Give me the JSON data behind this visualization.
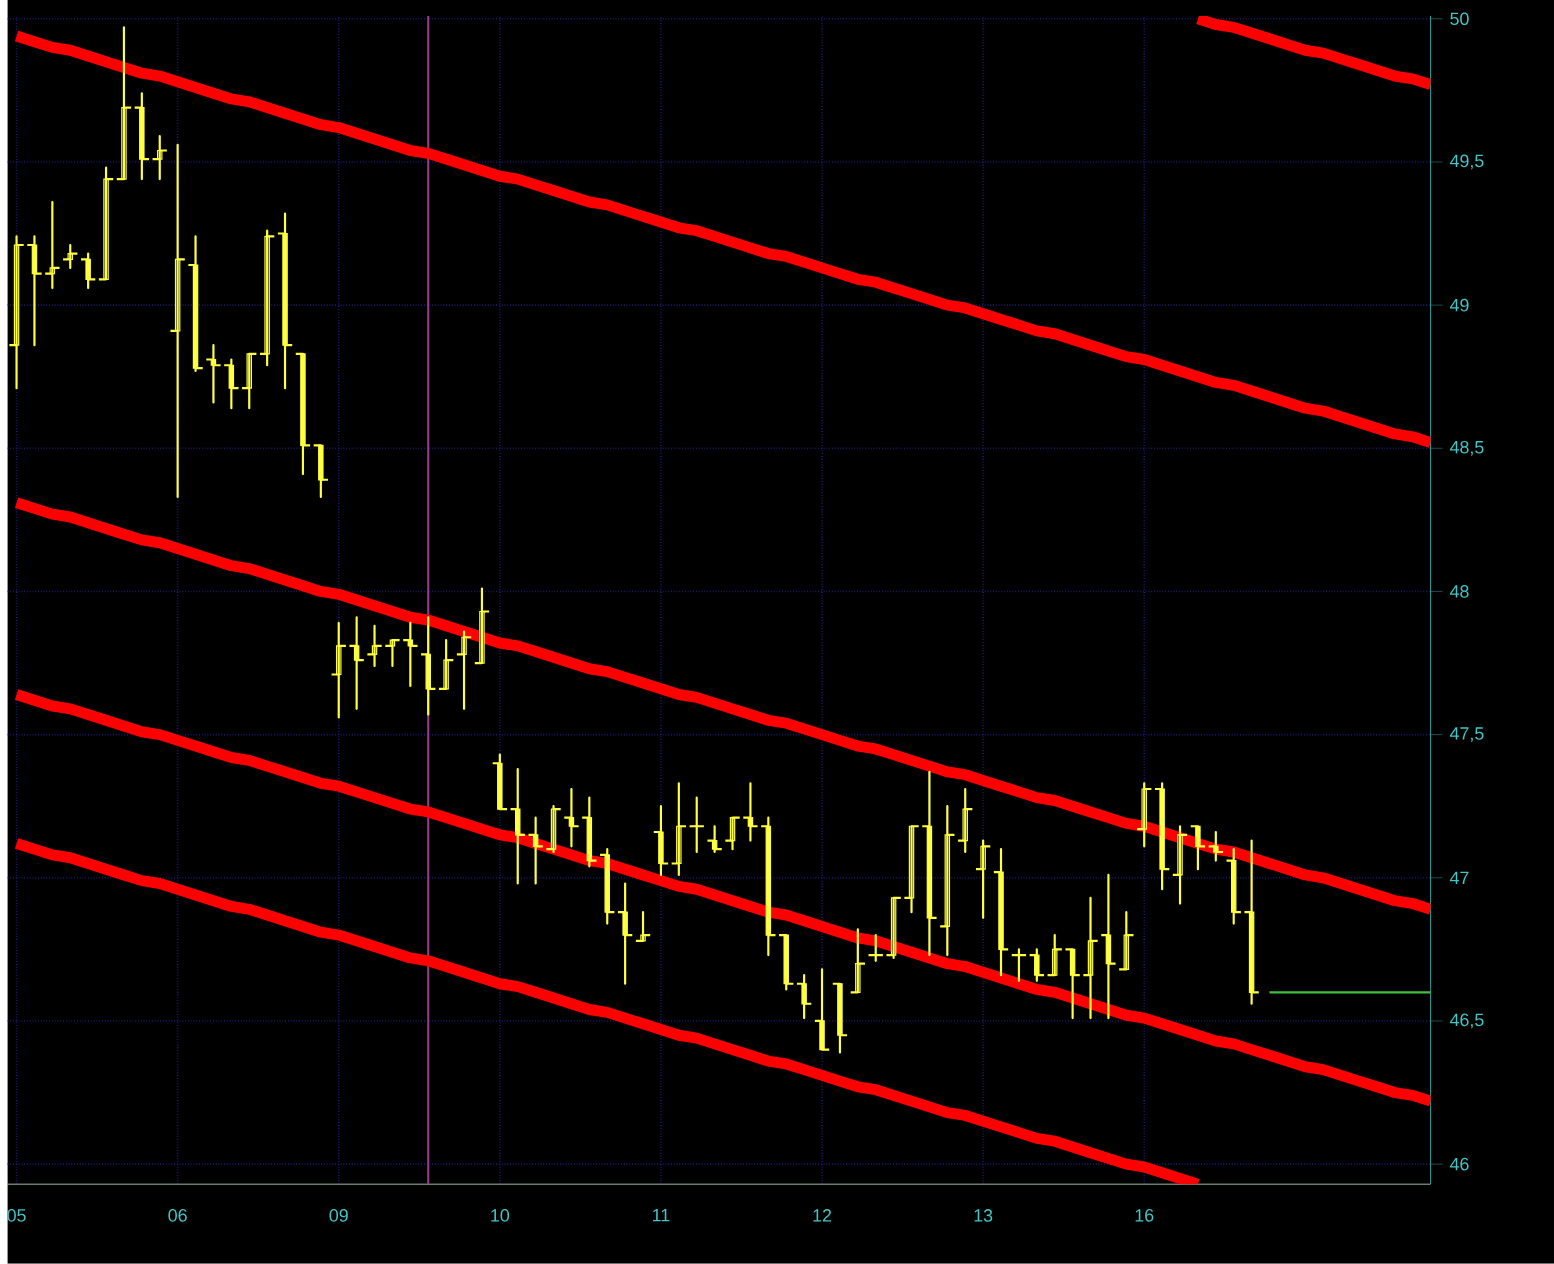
{
  "chart_data": {
    "type": "candlestick",
    "color": "#ffff40",
    "categories": [
      "05",
      null,
      null,
      null,
      null,
      null,
      null,
      null,
      null,
      "06",
      null,
      null,
      null,
      null,
      null,
      null,
      null,
      null,
      "09",
      null,
      null,
      null,
      null,
      null,
      null,
      null,
      null,
      "10",
      null,
      null,
      null,
      null,
      null,
      null,
      null,
      null,
      "11",
      null,
      null,
      null,
      null,
      null,
      null,
      null,
      null,
      "12",
      null,
      null,
      null,
      null,
      null,
      null,
      null,
      null,
      "13",
      null,
      null,
      null,
      null,
      null,
      null,
      null,
      null,
      "16",
      null,
      null,
      null,
      null,
      null,
      null,
      null,
      null,
      null,
      null,
      null,
      null,
      null,
      null,
      null,
      null
    ],
    "ohlc": [
      [
        48.86,
        49.24,
        48.71,
        49.21
      ],
      [
        49.21,
        49.24,
        48.86,
        49.11
      ],
      [
        49.11,
        49.36,
        49.06,
        49.13
      ],
      [
        49.16,
        49.21,
        49.13,
        49.18
      ],
      [
        49.16,
        49.18,
        49.06,
        49.09
      ],
      [
        49.09,
        49.48,
        49.09,
        49.44
      ],
      [
        49.44,
        49.97,
        49.44,
        49.69
      ],
      [
        49.69,
        49.74,
        49.44,
        49.51
      ],
      [
        49.51,
        49.59,
        49.44,
        49.54
      ],
      [
        48.91,
        49.56,
        48.33,
        49.16
      ],
      [
        49.14,
        49.24,
        48.77,
        48.78
      ],
      [
        48.81,
        48.86,
        48.66,
        48.79
      ],
      [
        48.79,
        48.81,
        48.64,
        48.71
      ],
      [
        48.71,
        48.83,
        48.64,
        48.83
      ],
      [
        48.83,
        49.26,
        48.79,
        49.24
      ],
      [
        49.25,
        49.32,
        48.71,
        48.86
      ],
      [
        48.83,
        48.83,
        48.41,
        48.51
      ],
      [
        48.51,
        48.51,
        48.33,
        48.39
      ],
      [
        47.71,
        47.89,
        47.56,
        47.81
      ],
      [
        47.81,
        47.91,
        47.59,
        47.76
      ],
      [
        47.78,
        47.88,
        47.74,
        47.81
      ],
      [
        47.81,
        47.83,
        47.74,
        47.83
      ],
      [
        47.83,
        47.89,
        47.67,
        47.81
      ],
      [
        47.78,
        47.91,
        47.57,
        47.66
      ],
      [
        47.66,
        47.83,
        47.66,
        47.76
      ],
      [
        47.78,
        47.86,
        47.59,
        47.84
      ],
      [
        47.75,
        48.01,
        47.75,
        47.93
      ],
      [
        47.4,
        47.43,
        47.24,
        47.24
      ],
      [
        47.24,
        47.38,
        46.98,
        47.15
      ],
      [
        47.15,
        47.21,
        46.98,
        47.11
      ],
      [
        47.1,
        47.25,
        47.09,
        47.24
      ],
      [
        47.21,
        47.31,
        47.11,
        47.18
      ],
      [
        47.21,
        47.28,
        47.04,
        47.06
      ],
      [
        47.08,
        47.1,
        46.84,
        46.88
      ],
      [
        46.88,
        46.98,
        46.63,
        46.8
      ],
      [
        46.78,
        46.88,
        46.78,
        46.8
      ],
      [
        47.16,
        47.25,
        47.01,
        47.05
      ],
      [
        47.05,
        47.33,
        47.01,
        47.18
      ],
      [
        47.18,
        47.28,
        47.09,
        47.18
      ],
      [
        47.13,
        47.18,
        47.09,
        47.1
      ],
      [
        47.13,
        47.21,
        47.1,
        47.21
      ],
      [
        47.21,
        47.33,
        47.13,
        47.18
      ],
      [
        47.18,
        47.21,
        46.73,
        46.8
      ],
      [
        46.8,
        46.8,
        46.61,
        46.63
      ],
      [
        46.63,
        46.66,
        46.51,
        46.56
      ],
      [
        46.5,
        46.68,
        46.4,
        46.4
      ],
      [
        46.63,
        46.63,
        46.39,
        46.45
      ],
      [
        46.6,
        46.82,
        46.6,
        46.7
      ],
      [
        46.73,
        46.8,
        46.71,
        46.73
      ],
      [
        46.73,
        46.93,
        46.72,
        46.93
      ],
      [
        46.93,
        47.18,
        46.88,
        47.18
      ],
      [
        47.18,
        47.37,
        46.73,
        46.86
      ],
      [
        46.83,
        47.25,
        46.73,
        47.15
      ],
      [
        47.13,
        47.31,
        47.09,
        47.24
      ],
      [
        47.03,
        47.13,
        46.86,
        47.11
      ],
      [
        47.02,
        47.1,
        46.66,
        46.75
      ],
      [
        46.73,
        46.75,
        46.64,
        46.73
      ],
      [
        46.73,
        46.75,
        46.64,
        46.66
      ],
      [
        46.66,
        46.8,
        46.66,
        46.75
      ],
      [
        46.75,
        46.75,
        46.51,
        46.66
      ],
      [
        46.66,
        46.93,
        46.51,
        46.78
      ],
      [
        46.8,
        47.01,
        46.51,
        46.7
      ],
      [
        46.68,
        46.88,
        46.68,
        46.8
      ],
      [
        47.17,
        47.33,
        47.11,
        47.31
      ],
      [
        47.31,
        47.33,
        46.96,
        47.03
      ],
      [
        47.01,
        47.18,
        46.91,
        47.15
      ],
      [
        47.18,
        47.18,
        47.03,
        47.11
      ],
      [
        47.11,
        47.16,
        47.06,
        47.09
      ],
      [
        47.06,
        47.1,
        46.84,
        46.88
      ],
      [
        46.88,
        47.13,
        46.56,
        46.6
      ],
      null,
      null,
      null,
      null,
      null,
      null,
      null,
      null,
      null,
      null
    ],
    "series": [
      {
        "type": "line",
        "color": "#ff0000",
        "values": [
          null,
          null,
          null,
          null,
          null,
          null,
          null,
          null,
          null,
          null,
          null,
          null,
          null,
          null,
          null,
          null,
          null,
          null,
          null,
          null,
          null,
          null,
          null,
          null,
          null,
          null,
          null,
          null,
          null,
          null,
          null,
          null,
          null,
          null,
          null,
          null,
          null,
          null,
          null,
          null,
          null,
          null,
          null,
          null,
          null,
          null,
          null,
          null,
          null,
          null,
          null,
          null,
          null,
          null,
          null,
          null,
          null,
          null,
          null,
          null,
          null,
          null,
          null,
          null,
          null,
          null,
          50.0,
          49.98,
          49.97,
          49.95,
          49.93,
          49.91,
          49.89,
          49.88,
          49.86,
          49.84,
          49.82,
          49.8,
          49.79,
          49.77
        ]
      },
      {
        "type": "line",
        "color": "#ff0000",
        "values": [
          49.94,
          49.92,
          49.9,
          49.89,
          49.87,
          49.85,
          49.83,
          49.81,
          49.8,
          49.78,
          49.76,
          49.74,
          49.72,
          49.71,
          49.69,
          49.67,
          49.65,
          49.63,
          49.62,
          49.6,
          49.58,
          49.56,
          49.54,
          49.53,
          49.51,
          49.49,
          49.47,
          49.45,
          49.44,
          49.42,
          49.4,
          49.38,
          49.36,
          49.35,
          49.33,
          49.31,
          49.29,
          49.27,
          49.26,
          49.24,
          49.22,
          49.2,
          49.18,
          49.17,
          49.15,
          49.13,
          49.11,
          49.09,
          49.08,
          49.06,
          49.04,
          49.02,
          49.0,
          48.99,
          48.97,
          48.95,
          48.93,
          48.91,
          48.9,
          48.88,
          48.86,
          48.84,
          48.82,
          48.81,
          48.79,
          48.77,
          48.75,
          48.73,
          48.72,
          48.7,
          48.68,
          48.66,
          48.64,
          48.63,
          48.61,
          48.59,
          48.57,
          48.55,
          48.54,
          48.52
        ]
      },
      {
        "type": "line",
        "color": "#ff0000",
        "values": [
          48.31,
          48.29,
          48.27,
          48.26,
          48.24,
          48.22,
          48.2,
          48.18,
          48.17,
          48.15,
          48.13,
          48.11,
          48.09,
          48.08,
          48.06,
          48.04,
          48.02,
          48.0,
          47.99,
          47.97,
          47.95,
          47.93,
          47.91,
          47.9,
          47.88,
          47.86,
          47.84,
          47.82,
          47.81,
          47.79,
          47.77,
          47.75,
          47.73,
          47.72,
          47.7,
          47.68,
          47.66,
          47.64,
          47.63,
          47.61,
          47.59,
          47.57,
          47.55,
          47.54,
          47.52,
          47.5,
          47.48,
          47.46,
          47.45,
          47.43,
          47.41,
          47.39,
          47.37,
          47.36,
          47.34,
          47.32,
          47.3,
          47.28,
          47.27,
          47.25,
          47.23,
          47.21,
          47.19,
          47.18,
          47.16,
          47.14,
          47.12,
          47.1,
          47.09,
          47.07,
          47.05,
          47.03,
          47.01,
          47.0,
          46.98,
          46.96,
          46.94,
          46.92,
          46.91,
          46.89
        ]
      },
      {
        "type": "line",
        "color": "#ff0000",
        "values": [
          47.64,
          47.62,
          47.6,
          47.59,
          47.57,
          47.55,
          47.53,
          47.51,
          47.5,
          47.48,
          47.46,
          47.44,
          47.42,
          47.41,
          47.39,
          47.37,
          47.35,
          47.33,
          47.32,
          47.3,
          47.28,
          47.26,
          47.24,
          47.23,
          47.21,
          47.19,
          47.17,
          47.15,
          47.14,
          47.12,
          47.1,
          47.08,
          47.06,
          47.05,
          47.03,
          47.01,
          46.99,
          46.97,
          46.96,
          46.94,
          46.92,
          46.9,
          46.88,
          46.87,
          46.85,
          46.83,
          46.81,
          46.79,
          46.78,
          46.76,
          46.74,
          46.72,
          46.7,
          46.69,
          46.67,
          46.65,
          46.63,
          46.61,
          46.6,
          46.58,
          46.56,
          46.54,
          46.52,
          46.51,
          46.49,
          46.47,
          46.45,
          46.43,
          46.42,
          46.4,
          46.38,
          46.36,
          46.34,
          46.33,
          46.31,
          46.29,
          46.27,
          46.25,
          46.24,
          46.22
        ]
      },
      {
        "type": "line",
        "color": "#ff0000",
        "values": [
          47.12,
          47.1,
          47.08,
          47.07,
          47.05,
          47.03,
          47.01,
          46.99,
          46.98,
          46.96,
          46.94,
          46.92,
          46.9,
          46.89,
          46.87,
          46.85,
          46.83,
          46.81,
          46.8,
          46.78,
          46.76,
          46.74,
          46.72,
          46.71,
          46.69,
          46.67,
          46.65,
          46.63,
          46.62,
          46.6,
          46.58,
          46.56,
          46.54,
          46.53,
          46.51,
          46.49,
          46.47,
          46.45,
          46.44,
          46.42,
          46.4,
          46.38,
          46.36,
          46.35,
          46.33,
          46.31,
          46.29,
          46.27,
          46.26,
          46.24,
          46.22,
          46.2,
          46.18,
          46.17,
          46.15,
          46.13,
          46.11,
          46.09,
          46.08,
          46.06,
          46.04,
          46.02,
          46.0,
          45.99,
          45.97,
          45.95,
          45.93,
          null,
          null,
          null,
          null,
          null,
          null,
          null,
          null,
          null,
          null,
          null,
          null,
          null
        ]
      },
      {
        "type": "line",
        "color": "#40c040",
        "values": [
          null,
          null,
          null,
          null,
          null,
          null,
          null,
          null,
          null,
          null,
          null,
          null,
          null,
          null,
          null,
          null,
          null,
          null,
          null,
          null,
          null,
          null,
          null,
          null,
          null,
          null,
          null,
          null,
          null,
          null,
          null,
          null,
          null,
          null,
          null,
          null,
          null,
          null,
          null,
          null,
          null,
          null,
          null,
          null,
          null,
          null,
          null,
          null,
          null,
          null,
          null,
          null,
          null,
          null,
          null,
          null,
          null,
          null,
          null,
          null,
          null,
          null,
          null,
          null,
          null,
          null,
          null,
          null,
          null,
          null,
          46.6,
          46.6,
          46.6,
          46.6,
          46.6,
          46.6,
          46.6,
          46.6,
          46.6,
          46.6
        ]
      }
    ],
    "ylim": [
      45.93,
      50.01
    ],
    "yticks": [
      46,
      {
        "value": 46.5,
        "label": "46,5"
      },
      47,
      {
        "value": 47.5,
        "label": "47,5"
      },
      48,
      {
        "value": 48.5,
        "label": "48,5"
      },
      49,
      {
        "value": 49.5,
        "label": "49,5"
      },
      50
    ],
    "grid": true
  }
}
